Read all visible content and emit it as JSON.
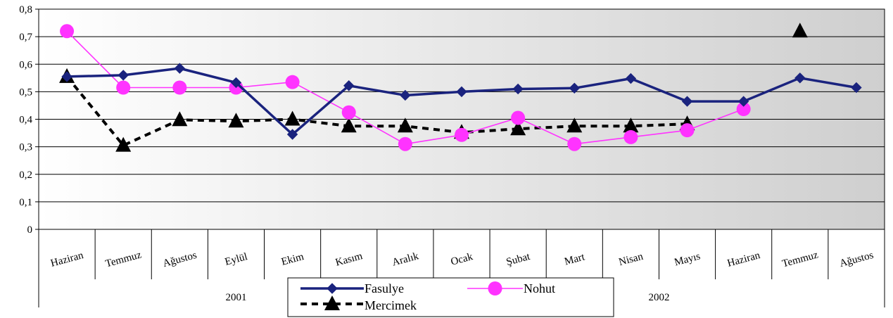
{
  "chart_data": {
    "type": "line",
    "categories": [
      "Haziran",
      "Temmuz",
      "Ağustos",
      "Eylül",
      "Ekim",
      "Kasım",
      "Aralık",
      "Ocak",
      "Şubat",
      "Mart",
      "Nisan",
      "Mayıs",
      "Haziran",
      "Temmuz",
      "Ağustos"
    ],
    "year_groups": [
      {
        "label": "2001",
        "start": 0,
        "end": 6
      },
      {
        "label": "2002",
        "start": 7,
        "end": 14
      }
    ],
    "ylim": [
      0,
      0.8
    ],
    "yticks": [
      "0",
      "0,1",
      "0,2",
      "0,3",
      "0,4",
      "0,5",
      "0,6",
      "0,7",
      "0,8"
    ],
    "grid": true,
    "legend_position": "bottom-center",
    "series": [
      {
        "name": "Fasulye",
        "color": "#1a237e",
        "marker": "diamond",
        "dash": false,
        "values": [
          0.555,
          0.56,
          0.585,
          0.533,
          0.345,
          0.522,
          0.487,
          0.5,
          0.51,
          0.513,
          0.548,
          0.465,
          0.465,
          0.55,
          0.515
        ]
      },
      {
        "name": "Nohut",
        "color": "#ff33ff",
        "marker": "circle",
        "dash": false,
        "values": [
          0.72,
          0.515,
          0.515,
          0.515,
          0.535,
          0.425,
          0.31,
          0.343,
          0.405,
          0.31,
          0.335,
          0.36,
          0.437,
          null,
          null
        ]
      },
      {
        "name": "Mercimek",
        "color": "#000000",
        "marker": "triangle",
        "dash": true,
        "values": [
          0.555,
          0.305,
          0.398,
          0.393,
          0.4,
          0.375,
          0.375,
          0.352,
          0.365,
          0.375,
          0.375,
          0.383,
          null,
          0.72,
          null
        ]
      }
    ]
  }
}
